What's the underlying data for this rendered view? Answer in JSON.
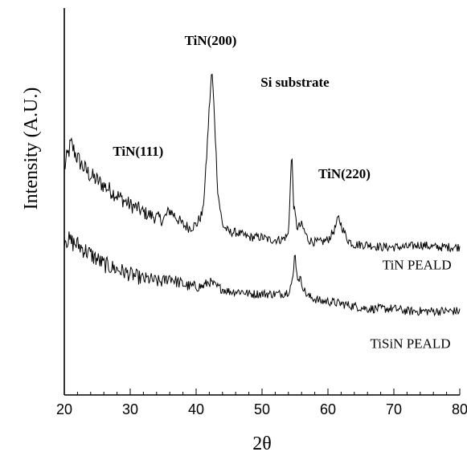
{
  "chart_data": {
    "type": "line",
    "xlabel": "2θ",
    "ylabel": "Intensity (A.U.)",
    "xlim": [
      20,
      80
    ],
    "x_ticks": [
      "20",
      "30",
      "40",
      "50",
      "60",
      "70",
      "80"
    ],
    "y_ticks_shown": false,
    "grid": false,
    "series": [
      {
        "name": "TiN PEALD",
        "color": "#000000",
        "points": [
          [
            20,
            0.6
          ],
          [
            21,
            0.7
          ],
          [
            22,
            0.64
          ],
          [
            23,
            0.6
          ],
          [
            24,
            0.57
          ],
          [
            25,
            0.55
          ],
          [
            26,
            0.53
          ],
          [
            27,
            0.51
          ],
          [
            28,
            0.49
          ],
          [
            29,
            0.47
          ],
          [
            30,
            0.45
          ],
          [
            31,
            0.44
          ],
          [
            32,
            0.42
          ],
          [
            33,
            0.41
          ],
          [
            34,
            0.4
          ],
          [
            35,
            0.39
          ],
          [
            36,
            0.43
          ],
          [
            37,
            0.4
          ],
          [
            38,
            0.37
          ],
          [
            39,
            0.36
          ],
          [
            40,
            0.37
          ],
          [
            41,
            0.42
          ],
          [
            41.5,
            0.6
          ],
          [
            42,
            0.85
          ],
          [
            42.4,
            1.0
          ],
          [
            42.8,
            0.8
          ],
          [
            43.3,
            0.5
          ],
          [
            44,
            0.37
          ],
          [
            45,
            0.34
          ],
          [
            46,
            0.34
          ],
          [
            47,
            0.33
          ],
          [
            48,
            0.32
          ],
          [
            49,
            0.32
          ],
          [
            50,
            0.32
          ],
          [
            51,
            0.31
          ],
          [
            52,
            0.31
          ],
          [
            53,
            0.31
          ],
          [
            54,
            0.33
          ],
          [
            54.5,
            0.67
          ],
          [
            54.8,
            0.45
          ],
          [
            55.3,
            0.36
          ],
          [
            56,
            0.37
          ],
          [
            57,
            0.31
          ],
          [
            58,
            0.3
          ],
          [
            59,
            0.3
          ],
          [
            60,
            0.31
          ],
          [
            61,
            0.35
          ],
          [
            61.6,
            0.4
          ],
          [
            62.3,
            0.35
          ],
          [
            63,
            0.31
          ],
          [
            64,
            0.29
          ],
          [
            66,
            0.29
          ],
          [
            68,
            0.28
          ],
          [
            70,
            0.28
          ],
          [
            72,
            0.28
          ],
          [
            74,
            0.29
          ],
          [
            76,
            0.28
          ],
          [
            78,
            0.28
          ],
          [
            80,
            0.28
          ]
        ]
      },
      {
        "name": "TiSiN PEALD",
        "color": "#000000",
        "points": [
          [
            20,
            0.32
          ],
          [
            21,
            0.3
          ],
          [
            22,
            0.29
          ],
          [
            23,
            0.27
          ],
          [
            24,
            0.25
          ],
          [
            25,
            0.23
          ],
          [
            26,
            0.21
          ],
          [
            27,
            0.2
          ],
          [
            28,
            0.19
          ],
          [
            29,
            0.18
          ],
          [
            30,
            0.17
          ],
          [
            31,
            0.16
          ],
          [
            32,
            0.15
          ],
          [
            33,
            0.15
          ],
          [
            34,
            0.14
          ],
          [
            35,
            0.14
          ],
          [
            36,
            0.16
          ],
          [
            37,
            0.14
          ],
          [
            38,
            0.13
          ],
          [
            39,
            0.12
          ],
          [
            40,
            0.12
          ],
          [
            41,
            0.12
          ],
          [
            42,
            0.14
          ],
          [
            43,
            0.12
          ],
          [
            44,
            0.11
          ],
          [
            45,
            0.1
          ],
          [
            46,
            0.1
          ],
          [
            47,
            0.1
          ],
          [
            48,
            0.09
          ],
          [
            49,
            0.09
          ],
          [
            50,
            0.09
          ],
          [
            51,
            0.09
          ],
          [
            52,
            0.09
          ],
          [
            53,
            0.09
          ],
          [
            54,
            0.1
          ],
          [
            54.7,
            0.15
          ],
          [
            55.0,
            0.27
          ],
          [
            55.3,
            0.16
          ],
          [
            55.8,
            0.15
          ],
          [
            56.5,
            0.1
          ],
          [
            57,
            0.08
          ],
          [
            58,
            0.07
          ],
          [
            59,
            0.06
          ],
          [
            60,
            0.06
          ],
          [
            62,
            0.05
          ],
          [
            64,
            0.04
          ],
          [
            66,
            0.03
          ],
          [
            68,
            0.03
          ],
          [
            70,
            0.03
          ],
          [
            72,
            0.02
          ],
          [
            74,
            0.02
          ],
          [
            76,
            0.02
          ],
          [
            78,
            0.02
          ],
          [
            80,
            0.02
          ]
        ]
      }
    ],
    "annotations": [
      {
        "text": "TiN(200)",
        "x": 42.2,
        "y": 1.1
      },
      {
        "text": "Si substrate",
        "x": 55.0,
        "y": 0.93
      },
      {
        "text": "TiN(111)",
        "x": 31.2,
        "y": 0.65
      },
      {
        "text": "TiN(220)",
        "x": 62.5,
        "y": 0.56
      },
      {
        "text": "TiN PEALD",
        "x": 73.5,
        "y": 0.19
      },
      {
        "text": "TiSiN PEALD",
        "x": 72.5,
        "y": -0.13
      }
    ],
    "ylim": [
      -0.32,
      1.25
    ]
  }
}
